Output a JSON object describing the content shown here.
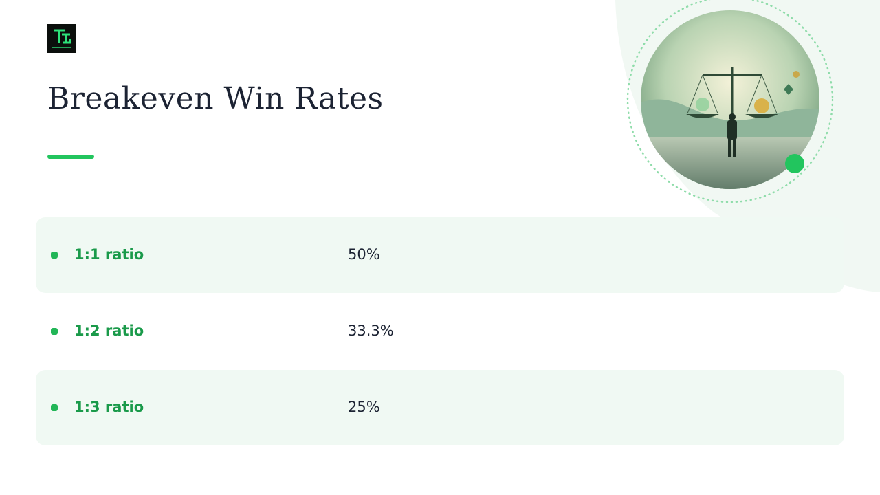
{
  "header": {
    "title": "Breakeven Win Rates"
  },
  "table": {
    "rows": [
      [
        "1:1 ratio",
        "50%"
      ],
      [
        "1:2 ratio",
        "33.3%"
      ],
      [
        "1:3 ratio",
        "25%"
      ]
    ]
  }
}
